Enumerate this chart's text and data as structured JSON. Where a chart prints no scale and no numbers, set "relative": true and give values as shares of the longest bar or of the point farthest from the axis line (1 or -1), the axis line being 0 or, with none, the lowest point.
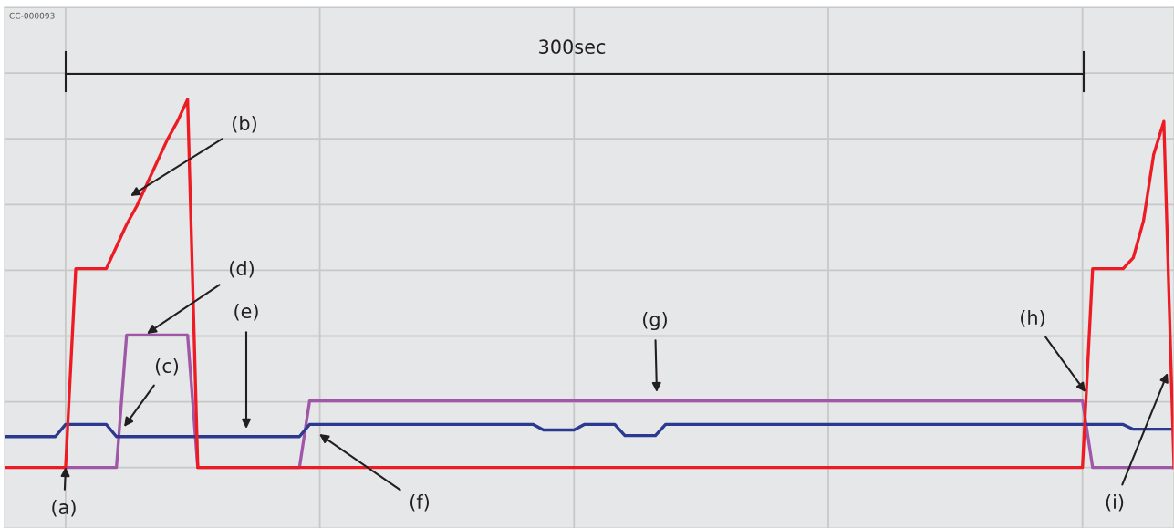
{
  "chart_data": {
    "type": "line",
    "relative": true,
    "grid": true,
    "marker": "none",
    "line_style": "solid",
    "categories": [
      null,
      null,
      null,
      null,
      null,
      null,
      null,
      null,
      null,
      null,
      null,
      null,
      null,
      null,
      null,
      null,
      null,
      null,
      null,
      null,
      null,
      null,
      null,
      null,
      null,
      null,
      null,
      null,
      null,
      null,
      null,
      null,
      null,
      null,
      null,
      null,
      null,
      null,
      null,
      null,
      null,
      null,
      null,
      null,
      null,
      null,
      null,
      null,
      null,
      null,
      null,
      null,
      null,
      null,
      null,
      null,
      null,
      null,
      null,
      null,
      null,
      null,
      null,
      null,
      null,
      null,
      null,
      null,
      null,
      null,
      null,
      null,
      null,
      null,
      null,
      null,
      null,
      null,
      null,
      null,
      null,
      null,
      null,
      null,
      null,
      null,
      null,
      null,
      null,
      null,
      null,
      null,
      null,
      null,
      null,
      null,
      null,
      null,
      null,
      null,
      null,
      null,
      null,
      null,
      null,
      null,
      null,
      null,
      null,
      null,
      null,
      null,
      null,
      null,
      null,
      null
    ],
    "series": [
      {
        "color": "#a057a8",
        "values": [
          null,
          null,
          null,
          null,
          null,
          null,
          0,
          0,
          0,
          0,
          0,
          0,
          0.36,
          0.36,
          0.36,
          0.36,
          0.36,
          0.36,
          0.36,
          0,
          0,
          0,
          0,
          0,
          0,
          0,
          0,
          0,
          0,
          0,
          0.181,
          0.181,
          0.181,
          0.181,
          0.181,
          0.181,
          0.181,
          0.181,
          0.181,
          0.181,
          0.181,
          0.181,
          0.181,
          0.181,
          0.181,
          0.181,
          0.181,
          0.181,
          0.181,
          0.181,
          0.181,
          0.181,
          0.181,
          0.181,
          0.181,
          0.181,
          0.181,
          0.181,
          0.181,
          0.181,
          0.181,
          0.181,
          0.181,
          0.181,
          0.181,
          0.181,
          0.181,
          0.181,
          0.181,
          0.181,
          0.181,
          0.181,
          0.181,
          0.181,
          0.181,
          0.181,
          0.181,
          0.181,
          0.181,
          0.181,
          0.181,
          0.181,
          0.181,
          0.181,
          0.181,
          0.181,
          0.181,
          0.181,
          0.181,
          0.181,
          0.181,
          0.181,
          0.181,
          0.181,
          0.181,
          0.181,
          0.181,
          0.181,
          0.181,
          0.181,
          0.181,
          0.181,
          0.181,
          0.181,
          0.181,
          0.181,
          0.181,
          0,
          0,
          0,
          0,
          0,
          0,
          0,
          0,
          0
        ]
      },
      {
        "color": "#2b3990",
        "values": [
          0.084,
          0.084,
          0.084,
          0.084,
          0.084,
          0.084,
          0.117,
          0.117,
          0.117,
          0.117,
          0.117,
          0.084,
          0.084,
          0.084,
          0.084,
          0.084,
          0.084,
          0.084,
          0.084,
          0.084,
          0.084,
          0.084,
          0.084,
          0.084,
          0.084,
          0.084,
          0.084,
          0.084,
          0.084,
          0.084,
          0.117,
          0.117,
          0.117,
          0.117,
          0.117,
          0.117,
          0.117,
          0.117,
          0.117,
          0.117,
          0.117,
          0.117,
          0.117,
          0.117,
          0.117,
          0.117,
          0.117,
          0.117,
          0.117,
          0.117,
          0.117,
          0.117,
          0.117,
          0.102,
          0.102,
          0.102,
          0.102,
          0.117,
          0.117,
          0.117,
          0.117,
          0.087,
          0.087,
          0.087,
          0.087,
          0.117,
          0.117,
          0.117,
          0.117,
          0.117,
          0.117,
          0.117,
          0.117,
          0.117,
          0.117,
          0.117,
          0.117,
          0.117,
          0.117,
          0.117,
          0.117,
          0.117,
          0.117,
          0.117,
          0.117,
          0.117,
          0.117,
          0.117,
          0.117,
          0.117,
          0.117,
          0.117,
          0.117,
          0.117,
          0.117,
          0.117,
          0.117,
          0.117,
          0.117,
          0.117,
          0.117,
          0.117,
          0.117,
          0.117,
          0.117,
          0.117,
          0.117,
          0.117,
          0.117,
          0.117,
          0.117,
          0.104,
          0.104,
          0.104,
          0.104,
          0.104
        ]
      },
      {
        "color": "#ed1c24",
        "values": [
          0,
          0,
          0,
          0,
          0,
          0,
          0,
          0.54,
          0.54,
          0.54,
          0.54,
          0.6,
          0.66,
          0.71,
          0.77,
          0.83,
          0.89,
          0.94,
          1,
          0,
          0,
          0,
          0,
          0,
          0,
          0,
          0,
          0,
          0,
          0,
          0,
          0,
          0,
          0,
          0,
          0,
          0,
          0,
          0,
          0,
          0,
          0,
          0,
          0,
          0,
          0,
          0,
          0,
          0,
          0,
          0,
          0,
          0,
          0,
          0,
          0,
          0,
          0,
          0,
          0,
          0,
          0,
          0,
          0,
          0,
          0,
          0,
          0,
          0,
          0,
          0,
          0,
          0,
          0,
          0,
          0,
          0,
          0,
          0,
          0,
          0,
          0,
          0,
          0,
          0,
          0,
          0,
          0,
          0,
          0,
          0,
          0,
          0,
          0,
          0,
          0,
          0,
          0,
          0,
          0,
          0,
          0,
          0,
          0,
          0,
          0,
          0,
          0.54,
          0.54,
          0.54,
          0.54,
          0.57,
          0.67,
          0.85,
          0.94,
          0
        ]
      }
    ],
    "annotations": [
      "300sec",
      "(a)",
      "(b)",
      "(c)",
      "(d)",
      "(e)",
      "(f)",
      "(g)",
      "(h)",
      "(i)",
      "CC-000093"
    ]
  }
}
